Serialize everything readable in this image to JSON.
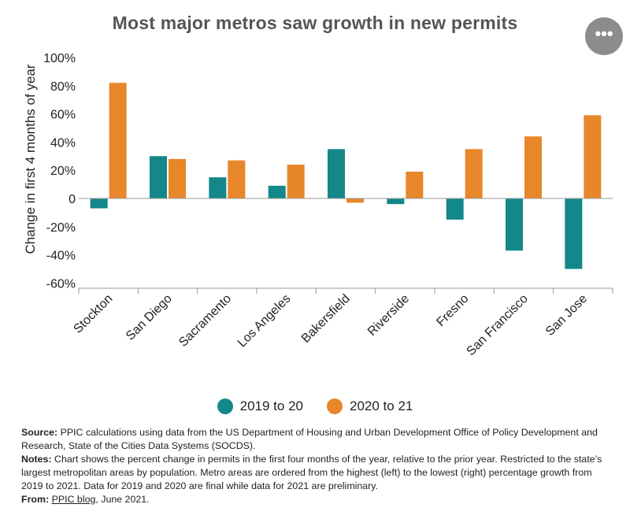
{
  "page": {
    "title": "Most major metros saw growth in new permits",
    "more_button_label": "•••"
  },
  "chart_data": {
    "type": "bar",
    "title": "Most major metros saw growth in new permits",
    "xlabel": "",
    "ylabel": "Change in first 4 months of year",
    "ylim": [
      -70,
      100
    ],
    "yticks": [
      100,
      80,
      60,
      40,
      20,
      0,
      -20,
      -40,
      -60
    ],
    "ytick_labels": [
      "100%",
      "80%",
      "60%",
      "40%",
      "20%",
      "0",
      "-20%",
      "-40%",
      "-60%"
    ],
    "grid": false,
    "legend_position": "bottom",
    "categories": [
      "Stockton",
      "San Diego",
      "Sacramento",
      "Los Angeles",
      "Bakersfield",
      "Riverside",
      "Fresno",
      "San Francisco",
      "San Jose"
    ],
    "series": [
      {
        "name": "2019 to 20",
        "color": "#13878a",
        "values": [
          -7,
          30,
          15,
          9,
          35,
          -4,
          -15,
          -37,
          -50
        ]
      },
      {
        "name": "2020 to 21",
        "color": "#e8862a",
        "values": [
          82,
          28,
          27,
          24,
          -3,
          19,
          35,
          44,
          59
        ]
      }
    ]
  },
  "legend": {
    "items": [
      {
        "label": "2019 to 20",
        "color": "#13878a"
      },
      {
        "label": "2020 to 21",
        "color": "#e8862a"
      }
    ]
  },
  "notes": {
    "source_label": "Source:",
    "source_text": " PPIC calculations using data from the US Department of Housing and Urban Development Office of Policy Development and Research, State of the Cities Data Systems (SOCDS).",
    "notes_label": "Notes:",
    "notes_text": " Chart shows the percent change in permits in the first four months of the year, relative to the prior year. Restricted to the state’s largest metropolitan areas by population. Metro areas are ordered from the highest (left) to the lowest (right) percentage growth from 2019 to 2021. Data for 2019 and 2020 are final while data for 2021 are preliminary.",
    "from_label": "From:",
    "from_link": "PPIC blog",
    "from_suffix": ", June 2021."
  }
}
